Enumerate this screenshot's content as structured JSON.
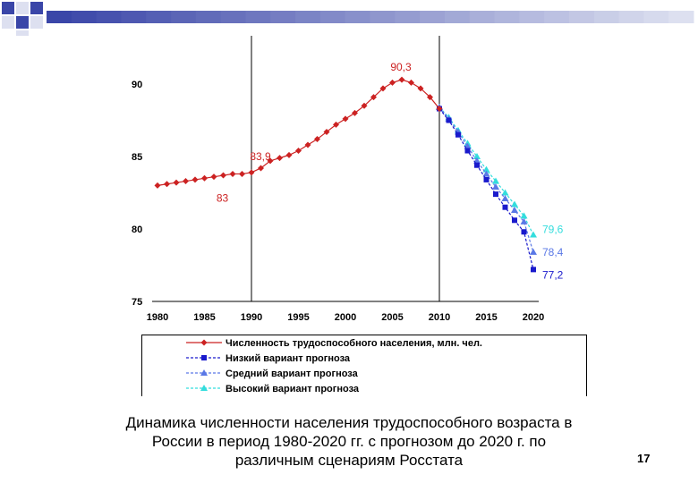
{
  "slide": {
    "caption_lines": [
      "Динамика численности населения трудоспособного возраста в",
      "России в период 1980-2020 гг. с прогнозом до 2020 г. по",
      "различным сценариям Росстата"
    ],
    "page_number": "17"
  },
  "colors": {
    "actual": "#cc2222",
    "low": "#1a1acc",
    "medium": "#5a78e6",
    "high": "#33dddd",
    "topbar_blue": "#3a46a8",
    "topbar_light": "#dde0f0"
  },
  "chart_data": {
    "type": "line",
    "title": "",
    "xlabel": "",
    "ylabel": "",
    "xlim": [
      1980,
      2020
    ],
    "ylim": [
      75,
      90
    ],
    "xticks": [
      "1980",
      "1985",
      "1990",
      "1995",
      "2000",
      "2005",
      "2010",
      "2015",
      "2020"
    ],
    "yticks": [
      "75",
      "80",
      "85",
      "90"
    ],
    "grid": "vertical lines at 1990 and 2010",
    "legend_position": "bottom",
    "annotations": [
      {
        "text": "83",
        "series": "actual",
        "x": 1983
      },
      {
        "text": "83,9",
        "series": "actual",
        "x": 1990
      },
      {
        "text": "90,3",
        "series": "actual",
        "x": 2006
      },
      {
        "text": "79,6",
        "series": "high",
        "x": 2020
      },
      {
        "text": "78,4",
        "series": "medium",
        "x": 2020
      },
      {
        "text": "77,2",
        "series": "low",
        "x": 2020
      }
    ],
    "series": [
      {
        "name": "Численность трудоспособного населения, млн. чел.",
        "key": "actual",
        "marker": "diamond",
        "x": [
          1980,
          1981,
          1982,
          1983,
          1984,
          1985,
          1986,
          1987,
          1988,
          1989,
          1990,
          1991,
          1992,
          1993,
          1994,
          1995,
          1996,
          1997,
          1998,
          1999,
          2000,
          2001,
          2002,
          2003,
          2004,
          2005,
          2006,
          2007,
          2008,
          2009,
          2010
        ],
        "values": [
          83.0,
          83.1,
          83.2,
          83.3,
          83.4,
          83.5,
          83.6,
          83.7,
          83.8,
          83.8,
          83.9,
          84.2,
          84.7,
          84.9,
          85.1,
          85.4,
          85.8,
          86.2,
          86.7,
          87.2,
          87.6,
          88.0,
          88.5,
          89.1,
          89.7,
          90.1,
          90.3,
          90.1,
          89.7,
          89.1,
          88.3
        ]
      },
      {
        "name": "Низкий вариант прогноза",
        "key": "low",
        "marker": "square",
        "x": [
          2010,
          2011,
          2012,
          2013,
          2014,
          2015,
          2016,
          2017,
          2018,
          2019,
          2020
        ],
        "values": [
          88.3,
          87.5,
          86.5,
          85.4,
          84.4,
          83.4,
          82.4,
          81.5,
          80.6,
          79.8,
          77.2
        ]
      },
      {
        "name": "Средний вариант прогноза",
        "key": "medium",
        "marker": "triangle",
        "x": [
          2010,
          2011,
          2012,
          2013,
          2014,
          2015,
          2016,
          2017,
          2018,
          2019,
          2020
        ],
        "values": [
          88.4,
          87.6,
          86.7,
          85.7,
          84.7,
          83.8,
          82.9,
          82.1,
          81.3,
          80.5,
          78.4
        ]
      },
      {
        "name": "Высокий вариант прогноза",
        "key": "high",
        "marker": "triangle",
        "x": [
          2010,
          2011,
          2012,
          2013,
          2014,
          2015,
          2016,
          2017,
          2018,
          2019,
          2020
        ],
        "values": [
          88.4,
          87.7,
          86.8,
          85.9,
          85.0,
          84.1,
          83.3,
          82.5,
          81.7,
          80.9,
          79.6
        ]
      }
    ]
  }
}
